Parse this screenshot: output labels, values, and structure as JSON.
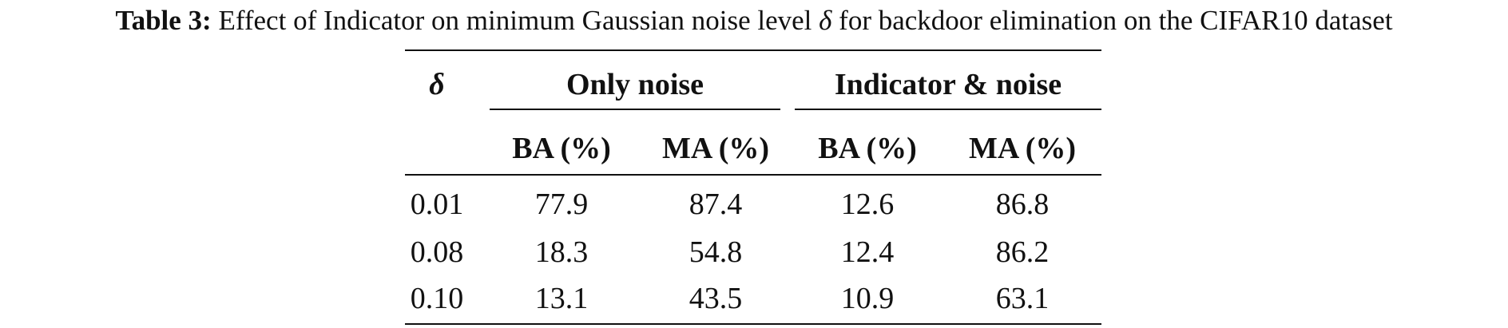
{
  "caption": {
    "label": "Table 3:",
    "text_before": "Effect of Indicator on minimum Gaussian noise level ",
    "symbol": "δ",
    "text_after": " for backdoor elimination on the CIFAR10 dataset"
  },
  "table": {
    "row_header": "δ",
    "groups": [
      {
        "label": "Only noise",
        "columns": [
          "BA (%)",
          "MA (%)"
        ]
      },
      {
        "label": "Indicator & noise",
        "columns": [
          "BA (%)",
          "MA (%)"
        ]
      }
    ],
    "rows": [
      {
        "delta": "0.01",
        "values": [
          "77.9",
          "87.4",
          "12.6",
          "86.8"
        ]
      },
      {
        "delta": "0.08",
        "values": [
          "18.3",
          "54.8",
          "12.4",
          "86.2"
        ]
      },
      {
        "delta": "0.10",
        "values": [
          "13.1",
          "43.5",
          "10.9",
          "63.1"
        ]
      }
    ]
  }
}
